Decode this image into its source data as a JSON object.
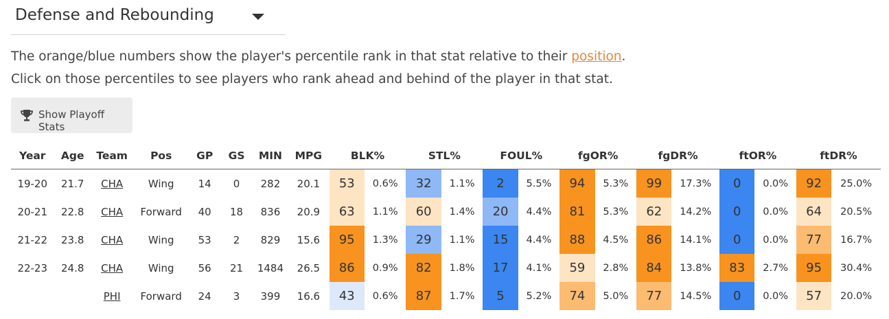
{
  "dropdown": {
    "label": "Defense and Rebounding"
  },
  "description": {
    "line1_before": "The orange/blue numbers show the player's percentile rank in that stat relative to their ",
    "line1_link": "position",
    "line1_after": ".",
    "line2": "Click on those percentiles to see players who rank ahead and behind of the player in that stat."
  },
  "playoff_button": {
    "label": "Show Playoff Stats",
    "icon": "trophy-icon"
  },
  "columns": {
    "year": "Year",
    "age": "Age",
    "team": "Team",
    "pos": "Pos",
    "gp": "GP",
    "gs": "GS",
    "min": "MIN",
    "mpg": "MPG",
    "blk": "BLK%",
    "stl": "STL%",
    "foul": "FOUL%",
    "fgor": "fgOR%",
    "fgdr": "fgDR%",
    "ftor": "ftOR%",
    "ftdr": "ftDR%"
  },
  "rows": [
    {
      "year": "19-20",
      "age": "21.7",
      "team": "CHA",
      "pos": "Wing",
      "gp": "14",
      "gs": "0",
      "min": "282",
      "mpg": "20.1",
      "stats": [
        {
          "p": 53,
          "v": "0.6%"
        },
        {
          "p": 32,
          "v": "1.1%"
        },
        {
          "p": 2,
          "v": "5.5%"
        },
        {
          "p": 94,
          "v": "5.3%"
        },
        {
          "p": 99,
          "v": "17.3%"
        },
        {
          "p": 0,
          "v": "0.0%"
        },
        {
          "p": 92,
          "v": "25.0%"
        }
      ]
    },
    {
      "year": "20-21",
      "age": "22.8",
      "team": "CHA",
      "pos": "Forward",
      "gp": "40",
      "gs": "18",
      "min": "836",
      "mpg": "20.9",
      "stats": [
        {
          "p": 63,
          "v": "1.1%"
        },
        {
          "p": 60,
          "v": "1.4%"
        },
        {
          "p": 20,
          "v": "4.4%"
        },
        {
          "p": 81,
          "v": "5.3%"
        },
        {
          "p": 62,
          "v": "14.2%"
        },
        {
          "p": 0,
          "v": "0.0%"
        },
        {
          "p": 64,
          "v": "20.5%"
        }
      ]
    },
    {
      "year": "21-22",
      "age": "23.8",
      "team": "CHA",
      "pos": "Wing",
      "gp": "53",
      "gs": "2",
      "min": "829",
      "mpg": "15.6",
      "stats": [
        {
          "p": 95,
          "v": "1.3%"
        },
        {
          "p": 29,
          "v": "1.1%"
        },
        {
          "p": 15,
          "v": "4.4%"
        },
        {
          "p": 88,
          "v": "4.5%"
        },
        {
          "p": 86,
          "v": "14.1%"
        },
        {
          "p": 0,
          "v": "0.0%"
        },
        {
          "p": 77,
          "v": "16.7%"
        }
      ]
    },
    {
      "year": "22-23",
      "age": "24.8",
      "team": "CHA",
      "pos": "Wing",
      "gp": "56",
      "gs": "21",
      "min": "1484",
      "mpg": "26.5",
      "stats": [
        {
          "p": 86,
          "v": "0.9%"
        },
        {
          "p": 82,
          "v": "1.8%"
        },
        {
          "p": 17,
          "v": "4.1%"
        },
        {
          "p": 59,
          "v": "2.8%"
        },
        {
          "p": 84,
          "v": "13.8%"
        },
        {
          "p": 83,
          "v": "2.7%"
        },
        {
          "p": 95,
          "v": "30.4%"
        }
      ]
    },
    {
      "year": "",
      "age": "",
      "team": "PHI",
      "pos": "Forward",
      "gp": "24",
      "gs": "3",
      "min": "399",
      "mpg": "16.6",
      "stats": [
        {
          "p": 43,
          "v": "0.6%"
        },
        {
          "p": 87,
          "v": "1.7%"
        },
        {
          "p": 5,
          "v": "5.2%"
        },
        {
          "p": 74,
          "v": "5.0%"
        },
        {
          "p": 77,
          "v": "14.5%"
        },
        {
          "p": 0,
          "v": "0.0%"
        },
        {
          "p": 57,
          "v": "20.0%"
        }
      ]
    }
  ],
  "colors": {
    "orange_strong": "#f7931e",
    "orange_mid": "#fbbb70",
    "orange_light": "#fde4c3",
    "blue_strong": "#3b86f0",
    "blue_mid": "#8fb8f6",
    "blue_light": "#dde9fb"
  }
}
